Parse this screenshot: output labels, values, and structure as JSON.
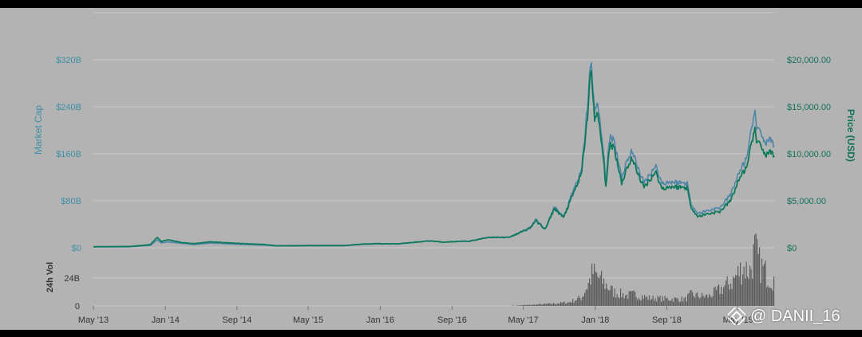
{
  "colors": {
    "background": "#b3b3b3",
    "grid": "#c9c9c9",
    "market_cap_line": "#4f86a8",
    "price_line": "#0e7a5c",
    "volume_bar": "#5c5c5c",
    "left_axis_text": "#3d8fa5",
    "right_axis_text": "#13705a"
  },
  "chart_data": {
    "type": "line",
    "title": "",
    "y_left_label": "Market Cap",
    "y_right_label": "Price (USD)",
    "volume_label": "24h Vol",
    "y_left_ticks": [
      "$0",
      "$80B",
      "$160B",
      "$240B",
      "$320B"
    ],
    "y_left_range": [
      0,
      320
    ],
    "y_right_ticks": [
      "$0",
      "$5,000.00",
      "$10,000.00",
      "$15,000.00",
      "$20,000.00"
    ],
    "y_right_range": [
      0,
      20000
    ],
    "volume_ticks": [
      "0",
      "24B"
    ],
    "x_ticks": [
      "May '13",
      "Jan '14",
      "Sep '14",
      "May '15",
      "Jan '16",
      "Sep '16",
      "May '17",
      "Jan '18",
      "Sep '18",
      "May '19"
    ],
    "grid": true,
    "legend": "none",
    "series": [
      {
        "name": "Market Cap",
        "axis": "left",
        "unit": "USD billions",
        "points": [
          [
            "2013-05-01",
            1.3
          ],
          [
            "2013-09-01",
            1.6
          ],
          [
            "2013-11-10",
            4.0
          ],
          [
            "2013-12-04",
            13.5
          ],
          [
            "2013-12-18",
            8.0
          ],
          [
            "2014-01-10",
            10.0
          ],
          [
            "2014-02-25",
            7.5
          ],
          [
            "2014-04-10",
            5.5
          ],
          [
            "2014-06-01",
            8.0
          ],
          [
            "2014-09-01",
            6.0
          ],
          [
            "2014-12-01",
            4.5
          ],
          [
            "2015-01-15",
            3.0
          ],
          [
            "2015-05-01",
            3.3
          ],
          [
            "2015-09-01",
            3.4
          ],
          [
            "2015-11-04",
            6.0
          ],
          [
            "2015-12-20",
            6.5
          ],
          [
            "2016-03-01",
            6.5
          ],
          [
            "2016-06-17",
            11.5
          ],
          [
            "2016-08-01",
            9.5
          ],
          [
            "2016-11-01",
            11.5
          ],
          [
            "2017-01-04",
            18.0
          ],
          [
            "2017-03-15",
            18.0
          ],
          [
            "2017-05-25",
            35.0
          ],
          [
            "2017-06-12",
            48.0
          ],
          [
            "2017-07-15",
            32.0
          ],
          [
            "2017-08-15",
            70.0
          ],
          [
            "2017-09-15",
            52.0
          ],
          [
            "2017-10-20",
            100.0
          ],
          [
            "2017-11-15",
            130.0
          ],
          [
            "2017-12-07",
            250.0
          ],
          [
            "2017-12-17",
            320.0
          ],
          [
            "2017-12-30",
            235.0
          ],
          [
            "2018-01-10",
            240.0
          ],
          [
            "2018-01-25",
            180.0
          ],
          [
            "2018-02-06",
            115.0
          ],
          [
            "2018-02-20",
            190.0
          ],
          [
            "2018-03-05",
            185.0
          ],
          [
            "2018-04-01",
            120.0
          ],
          [
            "2018-04-20",
            150.0
          ],
          [
            "2018-05-05",
            165.0
          ],
          [
            "2018-06-15",
            110.0
          ],
          [
            "2018-07-25",
            140.0
          ],
          [
            "2018-08-15",
            110.0
          ],
          [
            "2018-09-15",
            112.0
          ],
          [
            "2018-11-10",
            110.0
          ],
          [
            "2018-11-20",
            78.0
          ],
          [
            "2018-12-15",
            58.0
          ],
          [
            "2019-01-15",
            63.0
          ],
          [
            "2019-03-01",
            68.0
          ],
          [
            "2019-04-05",
            90.0
          ],
          [
            "2019-05-15",
            140.0
          ],
          [
            "2019-06-01",
            152.0
          ],
          [
            "2019-06-26",
            235.0
          ],
          [
            "2019-07-05",
            195.0
          ],
          [
            "2019-07-15",
            205.0
          ],
          [
            "2019-08-01",
            175.0
          ],
          [
            "2019-08-15",
            185.0
          ],
          [
            "2019-09-01",
            170.0
          ]
        ]
      },
      {
        "name": "Price (USD)",
        "axis": "right",
        "unit": "USD",
        "points": [
          [
            "2013-05-01",
            115
          ],
          [
            "2013-09-01",
            135
          ],
          [
            "2013-11-10",
            320
          ],
          [
            "2013-12-04",
            1130
          ],
          [
            "2013-12-18",
            650
          ],
          [
            "2014-01-10",
            850
          ],
          [
            "2014-02-25",
            560
          ],
          [
            "2014-04-10",
            440
          ],
          [
            "2014-06-01",
            640
          ],
          [
            "2014-09-01",
            470
          ],
          [
            "2014-12-01",
            350
          ],
          [
            "2015-01-15",
            210
          ],
          [
            "2015-05-01",
            235
          ],
          [
            "2015-09-01",
            235
          ],
          [
            "2015-11-04",
            400
          ],
          [
            "2015-12-20",
            440
          ],
          [
            "2016-03-01",
            415
          ],
          [
            "2016-06-17",
            740
          ],
          [
            "2016-08-01",
            600
          ],
          [
            "2016-11-01",
            710
          ],
          [
            "2017-01-04",
            1120
          ],
          [
            "2017-03-15",
            1100
          ],
          [
            "2017-05-25",
            2100
          ],
          [
            "2017-06-12",
            2900
          ],
          [
            "2017-07-15",
            1950
          ],
          [
            "2017-08-15",
            4200
          ],
          [
            "2017-09-15",
            3200
          ],
          [
            "2017-10-20",
            5900
          ],
          [
            "2017-11-15",
            7800
          ],
          [
            "2017-12-07",
            14500
          ],
          [
            "2017-12-17",
            19200
          ],
          [
            "2017-12-30",
            13800
          ],
          [
            "2018-01-10",
            14000
          ],
          [
            "2018-01-25",
            10500
          ],
          [
            "2018-02-06",
            6600
          ],
          [
            "2018-02-20",
            11000
          ],
          [
            "2018-03-05",
            10800
          ],
          [
            "2018-04-01",
            6900
          ],
          [
            "2018-04-20",
            8600
          ],
          [
            "2018-05-05",
            9500
          ],
          [
            "2018-06-15",
            6400
          ],
          [
            "2018-07-25",
            8100
          ],
          [
            "2018-08-15",
            6300
          ],
          [
            "2018-09-15",
            6500
          ],
          [
            "2018-11-10",
            6400
          ],
          [
            "2018-11-20",
            4500
          ],
          [
            "2018-12-15",
            3300
          ],
          [
            "2019-01-15",
            3600
          ],
          [
            "2019-03-01",
            3850
          ],
          [
            "2019-04-05",
            5000
          ],
          [
            "2019-05-15",
            8000
          ],
          [
            "2019-06-01",
            8500
          ],
          [
            "2019-06-26",
            12800
          ],
          [
            "2019-07-05",
            10800
          ],
          [
            "2019-07-15",
            11400
          ],
          [
            "2019-08-01",
            9700
          ],
          [
            "2019-08-15",
            10200
          ],
          [
            "2019-09-01",
            9600
          ]
        ]
      }
    ],
    "volume": {
      "unit": "USD billions",
      "axis_range": [
        0,
        30
      ],
      "points": [
        [
          "2013-05-01",
          0.0
        ],
        [
          "2016-12-31",
          0.05
        ],
        [
          "2017-04-01",
          0.15
        ],
        [
          "2017-06-01",
          0.7
        ],
        [
          "2017-08-01",
          1.2
        ],
        [
          "2017-10-01",
          2.0
        ],
        [
          "2017-11-15",
          5.0
        ],
        [
          "2017-12-10",
          14.0
        ],
        [
          "2017-12-22",
          19.0
        ],
        [
          "2018-01-10",
          16.0
        ],
        [
          "2018-02-05",
          12.0
        ],
        [
          "2018-03-01",
          8.0
        ],
        [
          "2018-04-15",
          6.0
        ],
        [
          "2018-05-15",
          6.5
        ],
        [
          "2018-07-01",
          4.5
        ],
        [
          "2018-09-01",
          4.0
        ],
        [
          "2018-11-01",
          3.8
        ],
        [
          "2018-11-20",
          6.5
        ],
        [
          "2018-12-20",
          5.5
        ],
        [
          "2019-01-20",
          5.5
        ],
        [
          "2019-03-01",
          9.5
        ],
        [
          "2019-04-10",
          14.0
        ],
        [
          "2019-05-15",
          22.0
        ],
        [
          "2019-06-10",
          20.0
        ],
        [
          "2019-06-26",
          32.0
        ],
        [
          "2019-07-10",
          24.0
        ],
        [
          "2019-08-10",
          17.0
        ],
        [
          "2019-09-01",
          15.0
        ]
      ]
    }
  },
  "watermark": {
    "icon": "binance-diamond-icon",
    "text": "@ DANII_16"
  }
}
